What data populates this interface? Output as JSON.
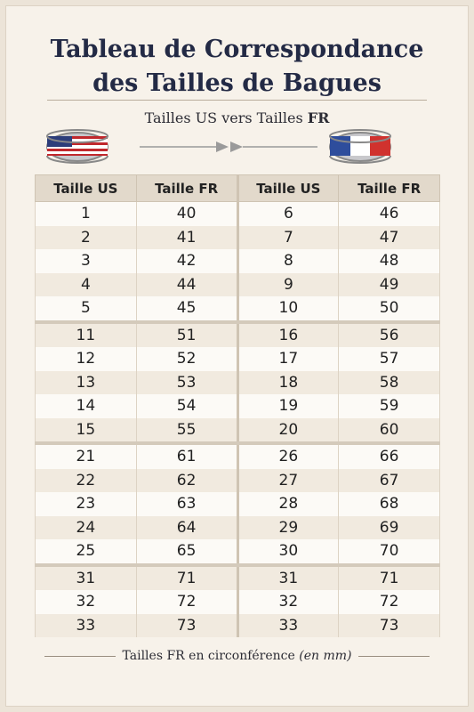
{
  "title": {
    "line1": "Tableau de Correspondance",
    "line2": "des Tailles de Bagues"
  },
  "subtitle": {
    "text": "Tailles US vers Tailles",
    "emphasis": "FR"
  },
  "table": {
    "header": [
      "Taille US",
      "Taille FR",
      "Taille US",
      "Taille FR"
    ],
    "groups": [
      [
        [
          1,
          40,
          6,
          46
        ],
        [
          2,
          41,
          7,
          47
        ],
        [
          3,
          42,
          8,
          48
        ],
        [
          4,
          44,
          9,
          49
        ],
        [
          5,
          45,
          10,
          50
        ]
      ],
      [
        [
          11,
          51,
          16,
          56
        ],
        [
          12,
          52,
          17,
          57
        ],
        [
          13,
          53,
          18,
          58
        ],
        [
          14,
          54,
          19,
          59
        ],
        [
          15,
          55,
          20,
          60
        ]
      ],
      [
        [
          21,
          61,
          26,
          66
        ],
        [
          22,
          62,
          27,
          67
        ],
        [
          23,
          63,
          28,
          68
        ],
        [
          24,
          64,
          29,
          69
        ],
        [
          25,
          65,
          30,
          70
        ]
      ],
      [
        [
          31,
          71,
          31,
          71
        ],
        [
          32,
          72,
          32,
          72
        ],
        [
          33,
          73,
          33,
          73
        ]
      ]
    ]
  },
  "footer": {
    "text": "Tailles FR en circonférence",
    "unit": "(en mm)"
  }
}
